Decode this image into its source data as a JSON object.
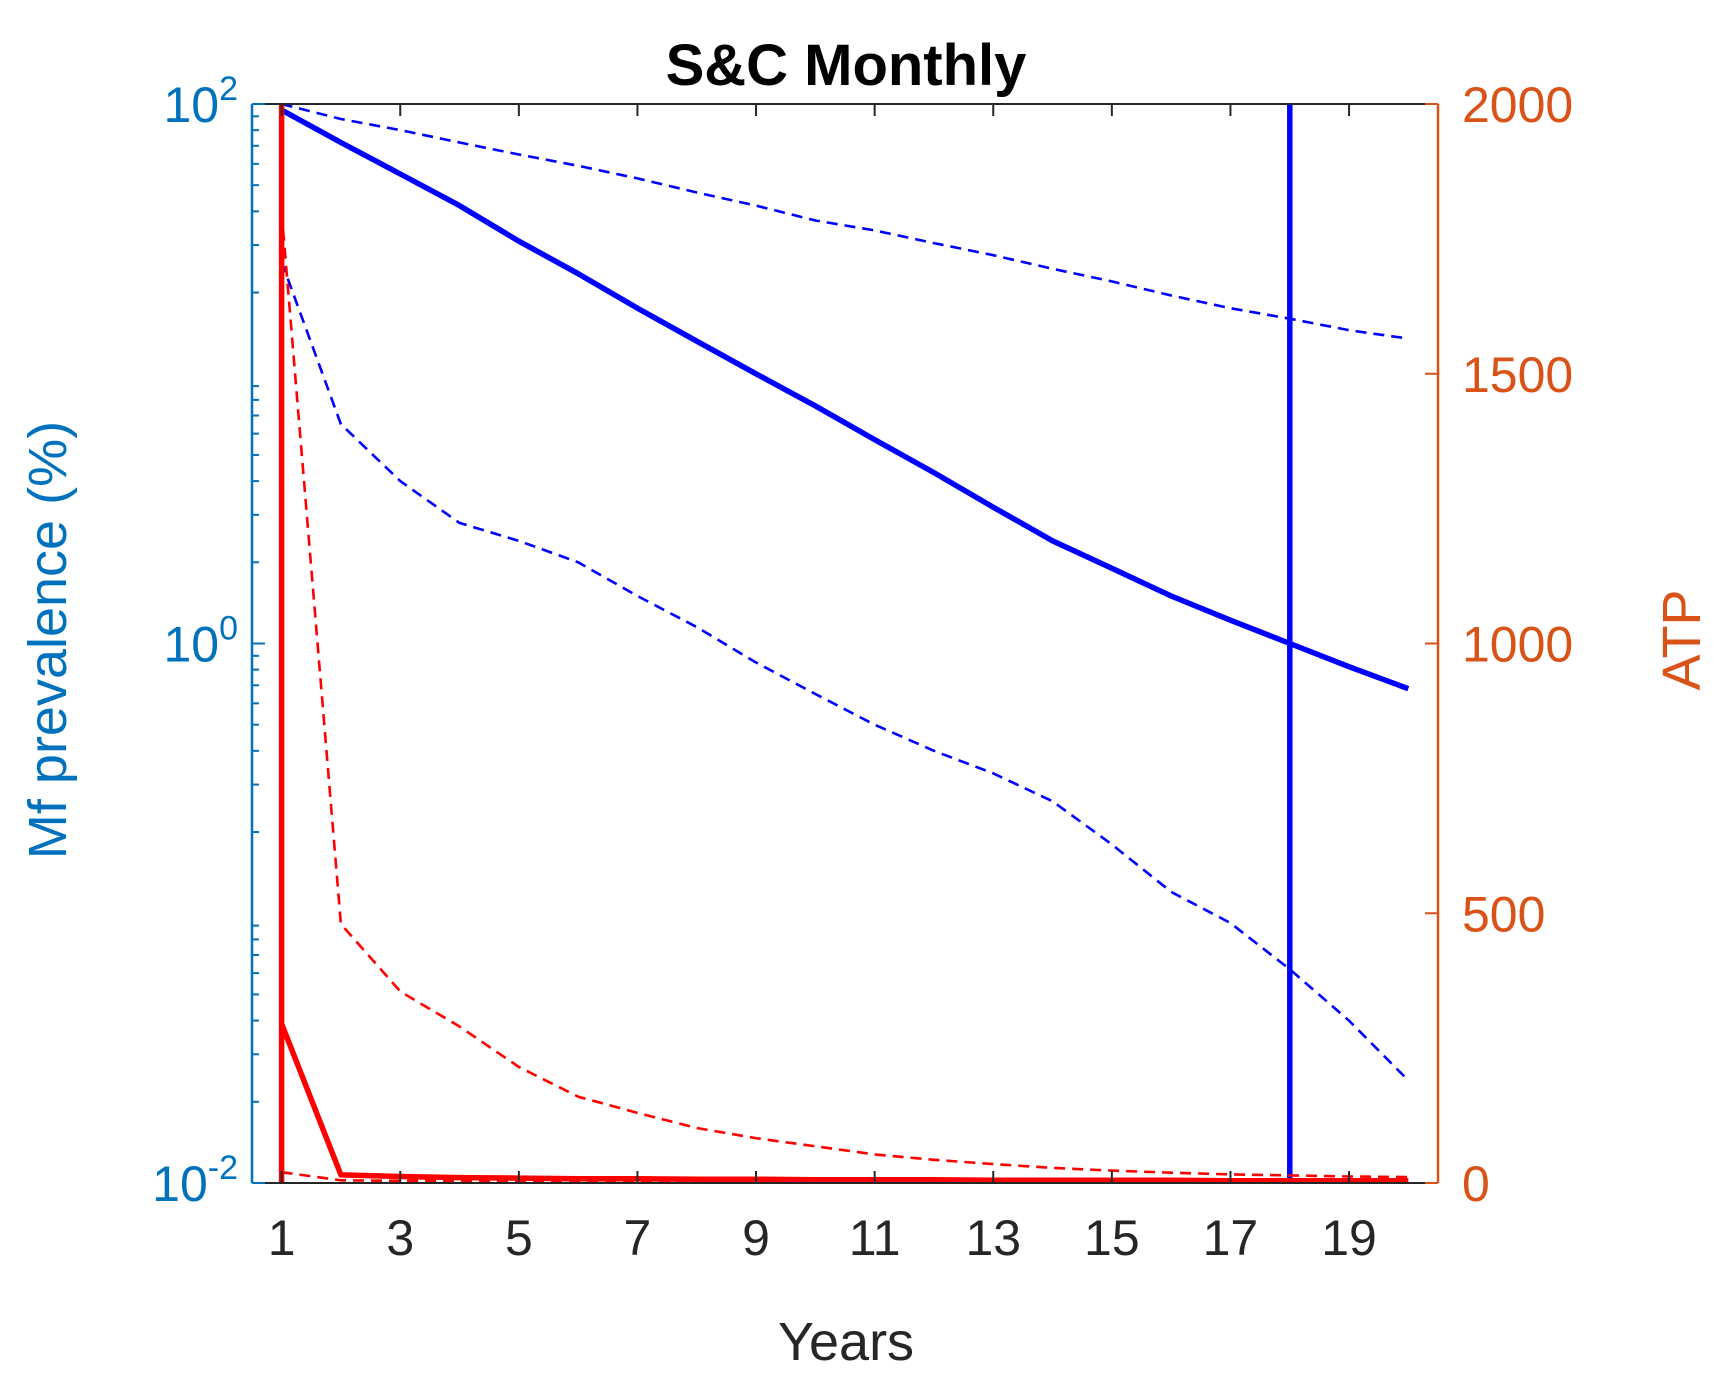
{
  "chart_data": {
    "type": "line",
    "title": "S&C Monthly",
    "xlabel": "Years",
    "ylabel_left": "Mf prevalence (%)",
    "ylabel_right": "ATP",
    "xlim": [
      0.5,
      20.5
    ],
    "x_ticks": [
      "1",
      "3",
      "5",
      "7",
      "9",
      "11",
      "13",
      "15",
      "17",
      "19"
    ],
    "left_axis": {
      "scale": "log",
      "ylim": [
        0.01,
        100
      ],
      "tick_values": [
        0.01,
        1,
        100
      ],
      "tick_labels": [
        {
          "base": "10",
          "exp": "-2"
        },
        {
          "base": "10",
          "exp": "0"
        },
        {
          "base": "10",
          "exp": "2"
        }
      ],
      "color": "#0072BD"
    },
    "right_axis": {
      "scale": "linear",
      "ylim": [
        0,
        2000
      ],
      "tick_values": [
        0,
        500,
        1000,
        1500,
        2000
      ],
      "tick_labels": [
        "0",
        "500",
        "1000",
        "1500",
        "2000"
      ],
      "color": "#D95319"
    },
    "grid": false,
    "legend": "none",
    "series": [
      {
        "axis": "left",
        "style": "solid",
        "color": "#0000FF",
        "x": [
          1,
          2,
          3,
          4,
          5,
          6,
          7,
          8,
          9,
          10,
          11,
          12,
          13,
          14,
          15,
          16,
          17,
          18,
          19,
          20
        ],
        "y": [
          95,
          72,
          55,
          42,
          31,
          23.5,
          17.5,
          13.2,
          10,
          7.6,
          5.7,
          4.3,
          3.2,
          2.4,
          1.9,
          1.5,
          1.22,
          1.0,
          0.82,
          0.68
        ]
      },
      {
        "axis": "left",
        "style": "dashed",
        "color": "#0000FF",
        "x": [
          1,
          2,
          3,
          4,
          5,
          6,
          7,
          8,
          9,
          10,
          11,
          12,
          13,
          14,
          15,
          16,
          17,
          18,
          19,
          20
        ],
        "y": [
          100,
          88,
          80,
          72,
          65,
          59,
          53,
          47,
          42,
          37,
          34,
          30.5,
          27.5,
          24.5,
          22,
          19.5,
          17.5,
          16,
          14.5,
          13.5
        ]
      },
      {
        "axis": "left",
        "style": "dashed",
        "color": "#0000FF",
        "x": [
          1,
          2,
          3,
          4,
          5,
          6,
          7,
          8,
          9,
          10,
          11,
          12,
          13,
          14,
          15,
          16,
          17,
          18,
          19,
          20
        ],
        "y": [
          26,
          6.5,
          4,
          2.8,
          2.4,
          2,
          1.5,
          1.15,
          0.85,
          0.65,
          0.5,
          0.4,
          0.33,
          0.26,
          0.18,
          0.12,
          0.092,
          0.062,
          0.04,
          0.024
        ]
      },
      {
        "axis": "left",
        "style": "solid",
        "color": "#0000FF",
        "x": [
          18,
          18
        ],
        "y": [
          0.01,
          100
        ]
      },
      {
        "axis": "right",
        "style": "solid",
        "color": "#FF0000",
        "x": [
          1,
          1
        ],
        "y": [
          0,
          2000
        ]
      },
      {
        "axis": "right",
        "style": "solid",
        "color": "#FF0000",
        "x": [
          1,
          2,
          3,
          4,
          5,
          6,
          7,
          8,
          9,
          10,
          11,
          12,
          13,
          14,
          15,
          16,
          17,
          18,
          19,
          20
        ],
        "y": [
          295,
          15,
          12,
          10,
          9,
          8,
          8,
          7,
          7,
          6,
          6,
          6,
          5,
          5,
          5,
          5,
          4,
          4,
          4,
          4
        ]
      },
      {
        "axis": "right",
        "style": "dashed",
        "color": "#FF0000",
        "x": [
          1,
          2,
          3,
          4,
          5,
          6,
          7,
          8,
          9,
          10,
          11,
          12,
          13,
          14,
          15,
          16,
          17,
          18,
          19,
          20
        ],
        "y": [
          1800,
          480,
          355,
          290,
          215,
          160,
          130,
          102,
          83,
          68,
          53,
          43,
          35,
          28,
          23,
          19,
          16,
          14,
          12,
          11
        ]
      },
      {
        "axis": "right",
        "style": "dashed",
        "color": "#FF0000",
        "x": [
          1,
          2,
          3,
          4,
          5,
          6,
          7,
          8,
          9,
          10,
          11,
          12,
          13,
          14,
          15,
          16,
          17,
          18,
          19,
          20
        ],
        "y": [
          20,
          5,
          4,
          4,
          3,
          3,
          3,
          3,
          3,
          3,
          2,
          2,
          2,
          2,
          2,
          2,
          2,
          2,
          2,
          2
        ]
      }
    ]
  }
}
